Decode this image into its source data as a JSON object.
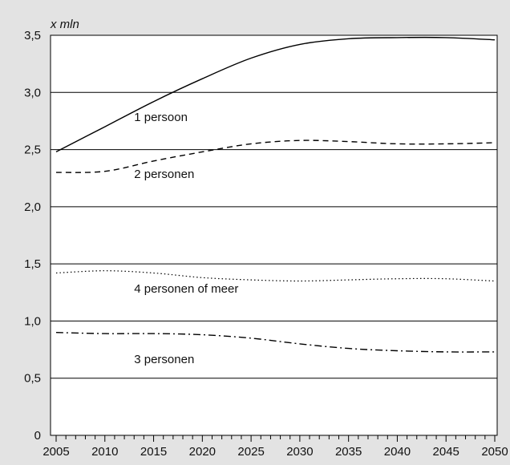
{
  "chart_data": {
    "type": "line",
    "title": "",
    "ylabel": "x mln",
    "xlabel": "",
    "ylim": [
      0,
      3.5
    ],
    "xlim": [
      2005,
      2050
    ],
    "grid": "horizontal",
    "y_ticks": [
      {
        "value": 0,
        "label": "0"
      },
      {
        "value": 0.5,
        "label": "0,5"
      },
      {
        "value": 1.0,
        "label": "1,0"
      },
      {
        "value": 1.5,
        "label": "1,5"
      },
      {
        "value": 2.0,
        "label": "2,0"
      },
      {
        "value": 2.5,
        "label": "2,5"
      },
      {
        "value": 3.0,
        "label": "3,0"
      },
      {
        "value": 3.5,
        "label": "3,5"
      }
    ],
    "x_ticks": [
      {
        "value": 2005,
        "label": "2005"
      },
      {
        "value": 2010,
        "label": "2010"
      },
      {
        "value": 2015,
        "label": "2015"
      },
      {
        "value": 2020,
        "label": "2020"
      },
      {
        "value": 2025,
        "label": "2025"
      },
      {
        "value": 2030,
        "label": "2030"
      },
      {
        "value": 2035,
        "label": "2035"
      },
      {
        "value": 2040,
        "label": "2040"
      },
      {
        "value": 2045,
        "label": "2045"
      },
      {
        "value": 2050,
        "label": "2050"
      }
    ],
    "x": [
      2005,
      2010,
      2015,
      2020,
      2025,
      2030,
      2035,
      2040,
      2045,
      2050
    ],
    "series": [
      {
        "name": "1 persoon",
        "style": "solid",
        "values": [
          2.48,
          2.7,
          2.92,
          3.12,
          3.3,
          3.42,
          3.47,
          3.48,
          3.48,
          3.46
        ],
        "label_at": [
          2013,
          2.75
        ]
      },
      {
        "name": "2 personen",
        "style": "dashed",
        "values": [
          2.3,
          2.31,
          2.4,
          2.48,
          2.55,
          2.58,
          2.57,
          2.55,
          2.55,
          2.56
        ],
        "label_at": [
          2013,
          2.25
        ]
      },
      {
        "name": "4 personen of meer",
        "style": "dotted",
        "values": [
          1.42,
          1.44,
          1.42,
          1.38,
          1.36,
          1.35,
          1.36,
          1.37,
          1.37,
          1.35
        ],
        "label_at": [
          2013,
          1.25
        ]
      },
      {
        "name": "3 personen",
        "style": "dashdot",
        "values": [
          0.9,
          0.89,
          0.89,
          0.88,
          0.85,
          0.8,
          0.76,
          0.74,
          0.73,
          0.73
        ],
        "label_at": [
          2013,
          0.63
        ]
      }
    ]
  }
}
